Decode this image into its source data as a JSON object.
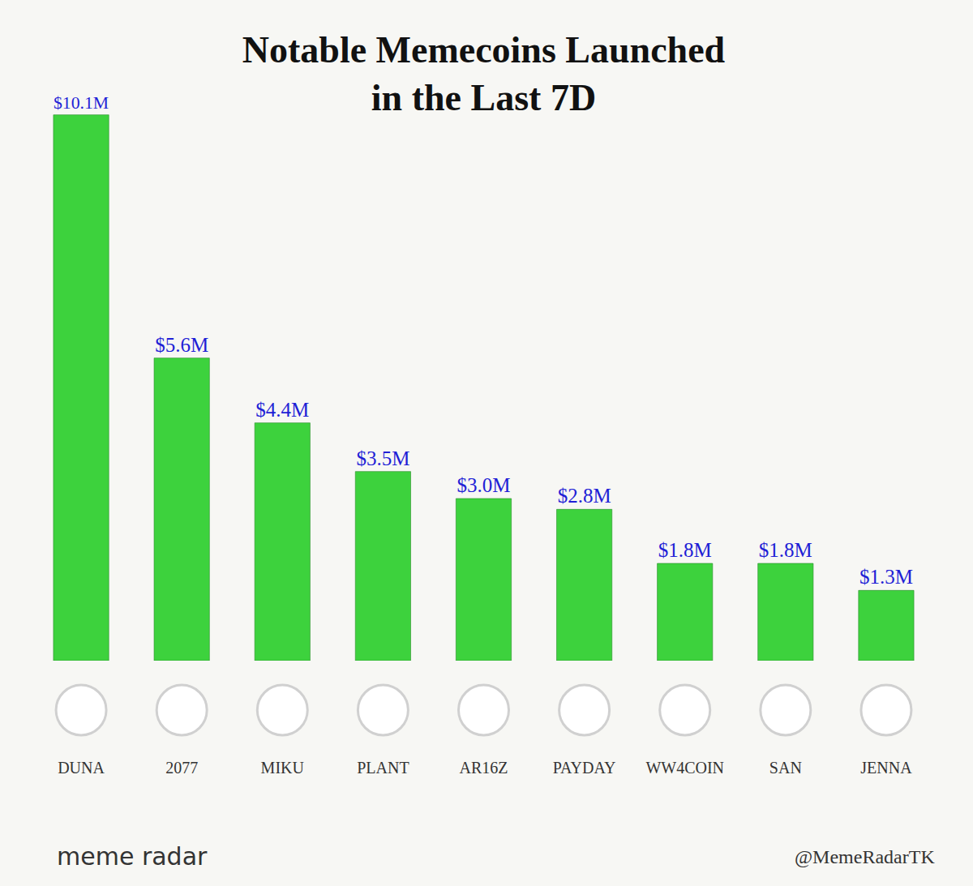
{
  "chart_data": {
    "type": "bar",
    "title": "Notable Memecoins Launched in the Last 7D",
    "categories": [
      "DUNA",
      "2077",
      "MIKU",
      "PLANT",
      "AR16Z",
      "PAYDAY",
      "WW4COIN",
      "SAN",
      "JENNA"
    ],
    "values": [
      10.1,
      5.6,
      4.4,
      3.5,
      3.0,
      2.8,
      1.8,
      1.8,
      1.3
    ],
    "value_labels": [
      "$10.1M",
      "$5.6M",
      "$4.4M",
      "$3.5M",
      "$3.0M",
      "$2.8M",
      "$1.8M",
      "$1.8M",
      "$1.3M"
    ],
    "color": "#3dd23d",
    "ylim": [
      0,
      10.5
    ],
    "data_labels": true,
    "tick_labels": "x",
    "annotations": [
      "meme radar",
      "@MemeRadarTK"
    ]
  }
}
